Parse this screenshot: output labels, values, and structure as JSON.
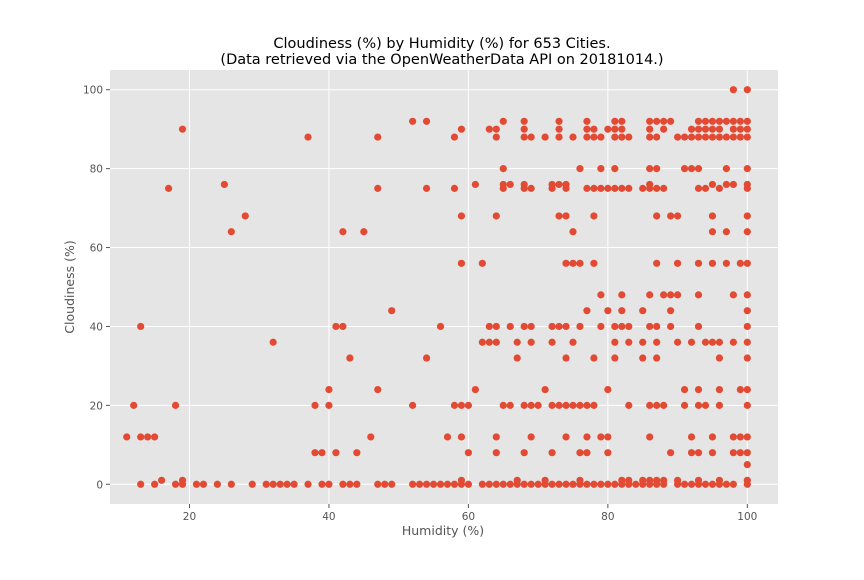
{
  "chart_data": {
    "type": "scatter",
    "title": "Cloudiness (%) by Humidity (%) for 653 Cities.",
    "subtitle": "(Data retrieved via the OpenWeatherData API on 20181014.)",
    "xlabel": "Humidity (%)",
    "ylabel": "Cloudiness (%)",
    "xlim": [
      8.6,
      104.4
    ],
    "ylim": [
      -5,
      105
    ],
    "xticks": [
      20,
      40,
      60,
      80,
      100
    ],
    "yticks": [
      0,
      20,
      40,
      60,
      80,
      100
    ],
    "grid": true,
    "marker_color": "#E24A33",
    "background_color": "#E5E5E5",
    "points": [
      [
        11,
        12
      ],
      [
        12,
        20
      ],
      [
        13,
        40
      ],
      [
        13,
        12
      ],
      [
        13,
        0
      ],
      [
        14,
        12
      ],
      [
        15,
        12
      ],
      [
        15,
        0
      ],
      [
        16,
        1
      ],
      [
        17,
        75
      ],
      [
        18,
        20
      ],
      [
        18,
        0
      ],
      [
        19,
        90
      ],
      [
        19,
        1
      ],
      [
        19,
        0
      ],
      [
        21,
        0
      ],
      [
        22,
        0
      ],
      [
        24,
        0
      ],
      [
        25,
        76
      ],
      [
        26,
        64
      ],
      [
        26,
        0
      ],
      [
        28,
        68
      ],
      [
        29,
        0
      ],
      [
        31,
        0
      ],
      [
        32,
        36
      ],
      [
        32,
        0
      ],
      [
        33,
        0
      ],
      [
        34,
        0
      ],
      [
        35,
        0
      ],
      [
        37,
        88
      ],
      [
        37,
        0
      ],
      [
        38,
        20
      ],
      [
        38,
        8
      ],
      [
        39,
        8
      ],
      [
        39,
        0
      ],
      [
        40,
        24
      ],
      [
        40,
        20
      ],
      [
        40,
        0
      ],
      [
        41,
        40
      ],
      [
        41,
        8
      ],
      [
        42,
        64
      ],
      [
        42,
        40
      ],
      [
        42,
        0
      ],
      [
        43,
        32
      ],
      [
        43,
        0
      ],
      [
        44,
        8
      ],
      [
        44,
        0
      ],
      [
        45,
        64
      ],
      [
        46,
        12
      ],
      [
        47,
        88
      ],
      [
        47,
        75
      ],
      [
        47,
        24
      ],
      [
        47,
        0
      ],
      [
        48,
        0
      ],
      [
        49,
        44
      ],
      [
        49,
        0
      ],
      [
        52,
        92
      ],
      [
        52,
        20
      ],
      [
        52,
        0
      ],
      [
        53,
        0
      ],
      [
        54,
        92
      ],
      [
        54,
        75
      ],
      [
        54,
        32
      ],
      [
        54,
        0
      ],
      [
        55,
        0
      ],
      [
        56,
        40
      ],
      [
        56,
        0
      ],
      [
        57,
        12
      ],
      [
        57,
        0
      ],
      [
        58,
        88
      ],
      [
        58,
        75
      ],
      [
        58,
        20
      ],
      [
        58,
        0
      ],
      [
        59,
        90
      ],
      [
        59,
        68
      ],
      [
        59,
        56
      ],
      [
        59,
        20
      ],
      [
        59,
        12
      ],
      [
        59,
        1
      ],
      [
        59,
        0
      ],
      [
        60,
        20
      ],
      [
        60,
        8
      ],
      [
        60,
        0
      ],
      [
        61,
        76
      ],
      [
        61,
        24
      ],
      [
        62,
        56
      ],
      [
        62,
        36
      ],
      [
        62,
        0
      ],
      [
        63,
        90
      ],
      [
        63,
        40
      ],
      [
        63,
        36
      ],
      [
        63,
        0
      ],
      [
        64,
        90
      ],
      [
        64,
        88
      ],
      [
        64,
        68
      ],
      [
        64,
        40
      ],
      [
        64,
        36
      ],
      [
        64,
        12
      ],
      [
        64,
        8
      ],
      [
        64,
        0
      ],
      [
        65,
        92
      ],
      [
        65,
        80
      ],
      [
        65,
        76
      ],
      [
        65,
        75
      ],
      [
        65,
        20
      ],
      [
        65,
        0
      ],
      [
        66,
        76
      ],
      [
        66,
        40
      ],
      [
        66,
        20
      ],
      [
        66,
        0
      ],
      [
        67,
        36
      ],
      [
        67,
        32
      ],
      [
        67,
        1
      ],
      [
        67,
        0
      ],
      [
        68,
        92
      ],
      [
        68,
        90
      ],
      [
        68,
        88
      ],
      [
        68,
        76
      ],
      [
        68,
        75
      ],
      [
        68,
        40
      ],
      [
        68,
        20
      ],
      [
        68,
        8
      ],
      [
        68,
        0
      ],
      [
        69,
        88
      ],
      [
        69,
        75
      ],
      [
        69,
        40
      ],
      [
        69,
        36
      ],
      [
        69,
        20
      ],
      [
        69,
        12
      ],
      [
        69,
        0
      ],
      [
        70,
        20
      ],
      [
        70,
        0
      ],
      [
        71,
        88
      ],
      [
        71,
        24
      ],
      [
        71,
        1
      ],
      [
        71,
        0
      ],
      [
        72,
        76
      ],
      [
        72,
        75
      ],
      [
        72,
        40
      ],
      [
        72,
        36
      ],
      [
        72,
        20
      ],
      [
        72,
        8
      ],
      [
        72,
        0
      ],
      [
        73,
        92
      ],
      [
        73,
        90
      ],
      [
        73,
        88
      ],
      [
        73,
        76
      ],
      [
        73,
        68
      ],
      [
        73,
        40
      ],
      [
        73,
        20
      ],
      [
        73,
        0
      ],
      [
        74,
        76
      ],
      [
        74,
        75
      ],
      [
        74,
        68
      ],
      [
        74,
        56
      ],
      [
        74,
        40
      ],
      [
        74,
        32
      ],
      [
        74,
        20
      ],
      [
        74,
        12
      ],
      [
        74,
        0
      ],
      [
        75,
        88
      ],
      [
        75,
        64
      ],
      [
        75,
        56
      ],
      [
        75,
        36
      ],
      [
        75,
        20
      ],
      [
        75,
        0
      ],
      [
        76,
        80
      ],
      [
        76,
        56
      ],
      [
        76,
        40
      ],
      [
        76,
        20
      ],
      [
        76,
        8
      ],
      [
        76,
        1
      ],
      [
        76,
        0
      ],
      [
        77,
        92
      ],
      [
        77,
        90
      ],
      [
        77,
        88
      ],
      [
        77,
        75
      ],
      [
        77,
        44
      ],
      [
        77,
        20
      ],
      [
        77,
        12
      ],
      [
        77,
        8
      ],
      [
        77,
        0
      ],
      [
        78,
        90
      ],
      [
        78,
        88
      ],
      [
        78,
        75
      ],
      [
        78,
        68
      ],
      [
        78,
        56
      ],
      [
        78,
        32
      ],
      [
        78,
        20
      ],
      [
        78,
        0
      ],
      [
        79,
        88
      ],
      [
        79,
        80
      ],
      [
        79,
        75
      ],
      [
        79,
        48
      ],
      [
        79,
        40
      ],
      [
        79,
        12
      ],
      [
        79,
        0
      ],
      [
        80,
        90
      ],
      [
        80,
        75
      ],
      [
        80,
        44
      ],
      [
        80,
        24
      ],
      [
        80,
        12
      ],
      [
        80,
        8
      ],
      [
        80,
        0
      ],
      [
        81,
        92
      ],
      [
        81,
        90
      ],
      [
        81,
        88
      ],
      [
        81,
        80
      ],
      [
        81,
        75
      ],
      [
        81,
        40
      ],
      [
        81,
        36
      ],
      [
        81,
        32
      ],
      [
        81,
        0
      ],
      [
        82,
        92
      ],
      [
        82,
        90
      ],
      [
        82,
        88
      ],
      [
        82,
        75
      ],
      [
        82,
        48
      ],
      [
        82,
        44
      ],
      [
        82,
        40
      ],
      [
        82,
        1
      ],
      [
        82,
        0
      ],
      [
        83,
        88
      ],
      [
        83,
        75
      ],
      [
        83,
        40
      ],
      [
        83,
        36
      ],
      [
        83,
        20
      ],
      [
        83,
        1
      ],
      [
        83,
        0
      ],
      [
        84,
        0
      ],
      [
        85,
        75
      ],
      [
        85,
        44
      ],
      [
        85,
        36
      ],
      [
        85,
        32
      ],
      [
        85,
        1
      ],
      [
        85,
        0
      ],
      [
        86,
        92
      ],
      [
        86,
        90
      ],
      [
        86,
        88
      ],
      [
        86,
        80
      ],
      [
        86,
        76
      ],
      [
        86,
        75
      ],
      [
        86,
        48
      ],
      [
        86,
        40
      ],
      [
        86,
        20
      ],
      [
        86,
        12
      ],
      [
        86,
        1
      ],
      [
        86,
        0
      ],
      [
        87,
        92
      ],
      [
        87,
        88
      ],
      [
        87,
        80
      ],
      [
        87,
        75
      ],
      [
        87,
        68
      ],
      [
        87,
        56
      ],
      [
        87,
        40
      ],
      [
        87,
        36
      ],
      [
        87,
        32
      ],
      [
        87,
        20
      ],
      [
        87,
        1
      ],
      [
        87,
        0
      ],
      [
        88,
        92
      ],
      [
        88,
        90
      ],
      [
        88,
        75
      ],
      [
        88,
        48
      ],
      [
        88,
        20
      ],
      [
        88,
        1
      ],
      [
        88,
        0
      ],
      [
        89,
        92
      ],
      [
        89,
        68
      ],
      [
        89,
        48
      ],
      [
        89,
        44
      ],
      [
        89,
        40
      ],
      [
        89,
        8
      ],
      [
        90,
        88
      ],
      [
        90,
        68
      ],
      [
        90,
        56
      ],
      [
        90,
        48
      ],
      [
        90,
        36
      ],
      [
        90,
        1
      ],
      [
        90,
        0
      ],
      [
        91,
        88
      ],
      [
        91,
        80
      ],
      [
        91,
        24
      ],
      [
        91,
        20
      ],
      [
        91,
        0
      ],
      [
        92,
        90
      ],
      [
        92,
        88
      ],
      [
        92,
        80
      ],
      [
        92,
        36
      ],
      [
        92,
        12
      ],
      [
        92,
        8
      ],
      [
        92,
        0
      ],
      [
        93,
        92
      ],
      [
        93,
        90
      ],
      [
        93,
        88
      ],
      [
        93,
        80
      ],
      [
        93,
        75
      ],
      [
        93,
        56
      ],
      [
        93,
        48
      ],
      [
        93,
        40
      ],
      [
        93,
        24
      ],
      [
        93,
        20
      ],
      [
        93,
        8
      ],
      [
        93,
        1
      ],
      [
        93,
        0
      ],
      [
        94,
        92
      ],
      [
        94,
        90
      ],
      [
        94,
        88
      ],
      [
        94,
        75
      ],
      [
        94,
        36
      ],
      [
        94,
        20
      ],
      [
        94,
        0
      ],
      [
        95,
        92
      ],
      [
        95,
        90
      ],
      [
        95,
        88
      ],
      [
        95,
        76
      ],
      [
        95,
        68
      ],
      [
        95,
        64
      ],
      [
        95,
        56
      ],
      [
        95,
        36
      ],
      [
        95,
        12
      ],
      [
        95,
        8
      ],
      [
        95,
        0
      ],
      [
        96,
        92
      ],
      [
        96,
        90
      ],
      [
        96,
        88
      ],
      [
        96,
        75
      ],
      [
        96,
        36
      ],
      [
        96,
        32
      ],
      [
        96,
        24
      ],
      [
        96,
        20
      ],
      [
        96,
        1
      ],
      [
        96,
        0
      ],
      [
        97,
        92
      ],
      [
        97,
        88
      ],
      [
        97,
        80
      ],
      [
        97,
        76
      ],
      [
        97,
        64
      ],
      [
        97,
        56
      ],
      [
        97,
        0
      ],
      [
        98,
        100
      ],
      [
        98,
        92
      ],
      [
        98,
        90
      ],
      [
        98,
        88
      ],
      [
        98,
        76
      ],
      [
        98,
        48
      ],
      [
        98,
        36
      ],
      [
        98,
        12
      ],
      [
        98,
        8
      ],
      [
        98,
        0
      ],
      [
        99,
        92
      ],
      [
        99,
        90
      ],
      [
        99,
        88
      ],
      [
        99,
        56
      ],
      [
        99,
        24
      ],
      [
        99,
        12
      ],
      [
        99,
        8
      ],
      [
        100,
        100
      ],
      [
        100,
        92
      ],
      [
        100,
        90
      ],
      [
        100,
        88
      ],
      [
        100,
        80
      ],
      [
        100,
        76
      ],
      [
        100,
        75
      ],
      [
        100,
        68
      ],
      [
        100,
        64
      ],
      [
        100,
        56
      ],
      [
        100,
        48
      ],
      [
        100,
        44
      ],
      [
        100,
        40
      ],
      [
        100,
        36
      ],
      [
        100,
        32
      ],
      [
        100,
        24
      ],
      [
        100,
        20
      ],
      [
        100,
        12
      ],
      [
        100,
        8
      ],
      [
        100,
        5
      ],
      [
        100,
        1
      ],
      [
        100,
        0
      ]
    ]
  }
}
